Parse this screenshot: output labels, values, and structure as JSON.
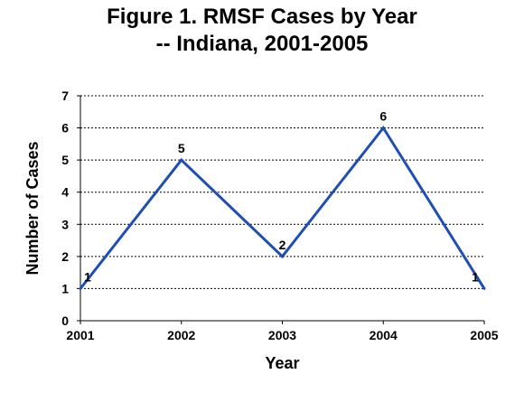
{
  "chart_data": {
    "type": "line",
    "title_line1": "Figure 1. RMSF Cases by Year",
    "title_line2": "-- Indiana, 2001-2005",
    "xlabel": "Year",
    "ylabel": "Number of Cases",
    "x": [
      2001,
      2002,
      2003,
      2004,
      2005
    ],
    "values": [
      1,
      5,
      2,
      6,
      1
    ],
    "data_labels": [
      "1",
      "5",
      "2",
      "6",
      "1"
    ],
    "ylim": [
      0,
      7
    ],
    "yticks": [
      0,
      1,
      2,
      3,
      4,
      5,
      6,
      7
    ],
    "grid": true,
    "line_color": "#1f4fb4"
  }
}
